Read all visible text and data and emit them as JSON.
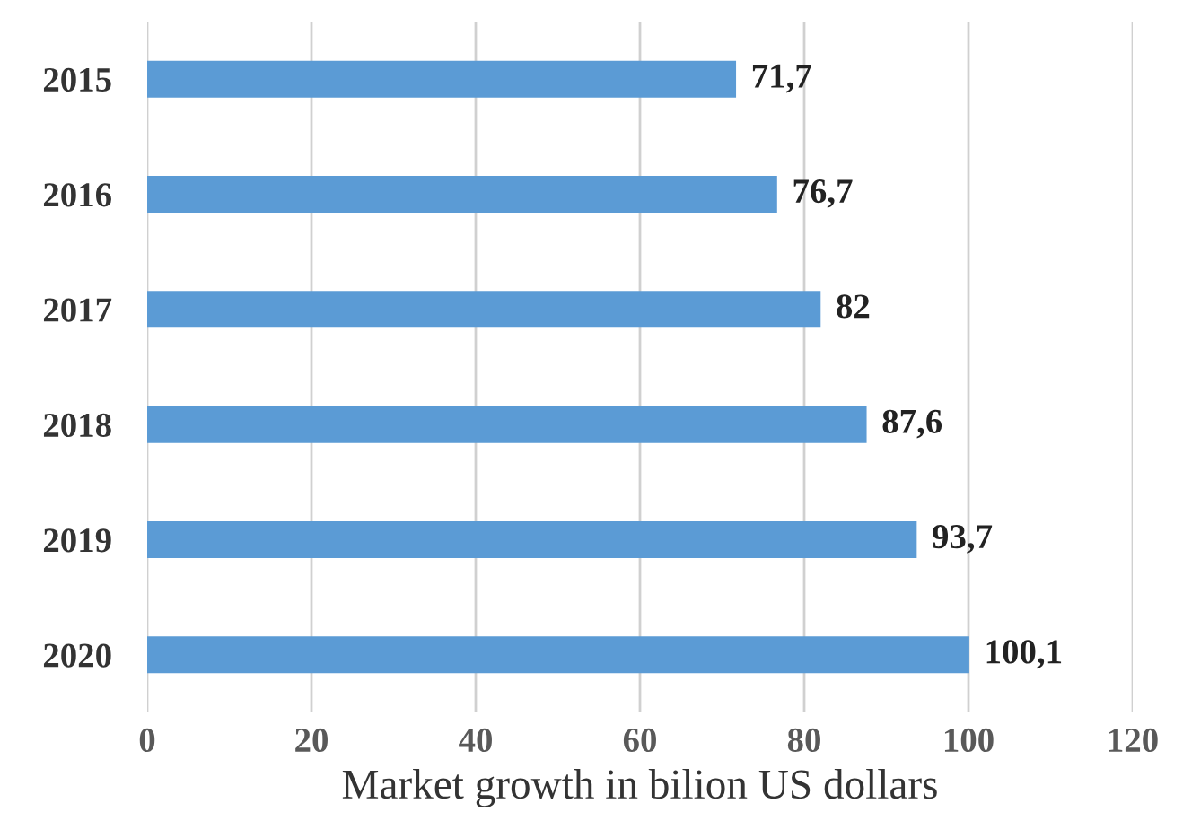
{
  "chart_data": {
    "type": "bar",
    "orientation": "horizontal",
    "xlabel": "Market growth in bilion US dollars",
    "categories": [
      "2015",
      "2016",
      "2017",
      "2018",
      "2019",
      "2020"
    ],
    "values": [
      71.7,
      76.7,
      82,
      87.6,
      93.7,
      100.1
    ],
    "value_labels": [
      "71,7",
      "76,7",
      "82",
      "87,6",
      "93,7",
      "100,1"
    ],
    "color": "#5b9bd5",
    "xlim": [
      0,
      120
    ],
    "xticks": [
      0,
      20,
      40,
      60,
      80,
      100,
      120
    ],
    "grid": "x",
    "legend": false
  }
}
